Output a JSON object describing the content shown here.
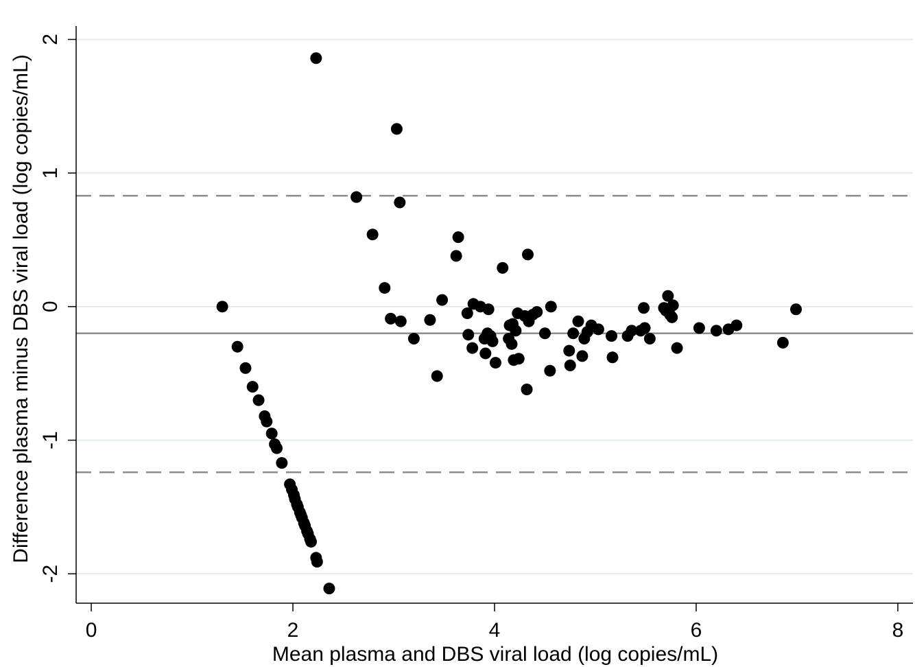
{
  "chart_data": {
    "type": "scatter",
    "xlabel": "Mean plasma and DBS viral load (log copies/mL)",
    "ylabel": "Difference plasma minus DBS viral load (log copies/mL)",
    "xlim": [
      -0.15,
      8.15
    ],
    "ylim": [
      -2.22,
      2.1
    ],
    "xticks": [
      0,
      2,
      4,
      6,
      8
    ],
    "yticks": [
      -2,
      -1,
      0,
      1,
      2
    ],
    "grid": "horizontal",
    "mean_line": -0.2,
    "limits_of_agreement": [
      0.83,
      -1.24
    ],
    "colors": {
      "points": "#000000",
      "reference_lines": "#8c8c8c",
      "grid": "#e2ebeb",
      "axis": "#000000"
    },
    "points": [
      [
        1.3,
        0.0
      ],
      [
        1.45,
        -0.3
      ],
      [
        1.53,
        -0.46
      ],
      [
        1.6,
        -0.6
      ],
      [
        1.66,
        -0.7
      ],
      [
        1.72,
        -0.82
      ],
      [
        1.74,
        -0.86
      ],
      [
        1.79,
        -0.95
      ],
      [
        1.82,
        -1.03
      ],
      [
        1.84,
        -1.06
      ],
      [
        1.89,
        -1.17
      ],
      [
        1.97,
        -1.33
      ],
      [
        1.99,
        -1.37
      ],
      [
        2.01,
        -1.41
      ],
      [
        2.02,
        -1.44
      ],
      [
        2.04,
        -1.48
      ],
      [
        2.05,
        -1.5
      ],
      [
        2.07,
        -1.54
      ],
      [
        2.08,
        -1.56
      ],
      [
        2.09,
        -1.58
      ],
      [
        2.11,
        -1.62
      ],
      [
        2.12,
        -1.64
      ],
      [
        2.14,
        -1.68
      ],
      [
        2.15,
        -1.7
      ],
      [
        2.17,
        -1.74
      ],
      [
        2.18,
        -1.76
      ],
      [
        2.23,
        -1.88
      ],
      [
        2.24,
        -1.91
      ],
      [
        2.36,
        -2.11
      ],
      [
        2.23,
        1.86
      ],
      [
        2.63,
        0.82
      ],
      [
        2.79,
        0.54
      ],
      [
        2.91,
        0.14
      ],
      [
        2.97,
        -0.09
      ],
      [
        3.03,
        1.33
      ],
      [
        3.06,
        0.78
      ],
      [
        3.07,
        -0.11
      ],
      [
        3.2,
        -0.24
      ],
      [
        3.36,
        -0.1
      ],
      [
        3.43,
        -0.52
      ],
      [
        3.48,
        0.05
      ],
      [
        3.62,
        0.38
      ],
      [
        3.64,
        0.52
      ],
      [
        3.73,
        -0.05
      ],
      [
        3.74,
        -0.21
      ],
      [
        3.78,
        -0.31
      ],
      [
        3.79,
        0.02
      ],
      [
        3.86,
        0.0
      ],
      [
        3.9,
        -0.24
      ],
      [
        3.91,
        -0.35
      ],
      [
        3.93,
        -0.2
      ],
      [
        3.94,
        -0.02
      ],
      [
        3.96,
        -0.22
      ],
      [
        3.98,
        -0.26
      ],
      [
        4.01,
        -0.42
      ],
      [
        4.08,
        0.29
      ],
      [
        4.14,
        -0.24
      ],
      [
        4.15,
        -0.14
      ],
      [
        4.17,
        -0.28
      ],
      [
        4.18,
        -0.13
      ],
      [
        4.19,
        -0.4
      ],
      [
        4.21,
        -0.18
      ],
      [
        4.23,
        -0.05
      ],
      [
        4.24,
        -0.39
      ],
      [
        4.3,
        -0.07
      ],
      [
        4.32,
        -0.62
      ],
      [
        4.33,
        0.39
      ],
      [
        4.34,
        -0.11
      ],
      [
        4.38,
        -0.06
      ],
      [
        4.42,
        -0.04
      ],
      [
        4.5,
        -0.2
      ],
      [
        4.55,
        -0.48
      ],
      [
        4.56,
        0.0
      ],
      [
        4.74,
        -0.33
      ],
      [
        4.75,
        -0.44
      ],
      [
        4.78,
        -0.2
      ],
      [
        4.83,
        -0.11
      ],
      [
        4.87,
        -0.37
      ],
      [
        4.89,
        -0.24
      ],
      [
        4.92,
        -0.19
      ],
      [
        4.96,
        -0.14
      ],
      [
        5.03,
        -0.17
      ],
      [
        5.16,
        -0.22
      ],
      [
        5.17,
        -0.38
      ],
      [
        5.32,
        -0.22
      ],
      [
        5.36,
        -0.18
      ],
      [
        5.45,
        -0.18
      ],
      [
        5.48,
        -0.01
      ],
      [
        5.49,
        -0.16
      ],
      [
        5.54,
        -0.24
      ],
      [
        5.68,
        -0.01
      ],
      [
        5.7,
        -0.03
      ],
      [
        5.72,
        0.08
      ],
      [
        5.74,
        -0.06
      ],
      [
        5.76,
        -0.08
      ],
      [
        5.77,
        0.01
      ],
      [
        5.81,
        -0.31
      ],
      [
        6.03,
        -0.16
      ],
      [
        6.2,
        -0.18
      ],
      [
        6.32,
        -0.17
      ],
      [
        6.4,
        -0.14
      ],
      [
        6.86,
        -0.27
      ],
      [
        6.99,
        -0.02
      ]
    ]
  }
}
